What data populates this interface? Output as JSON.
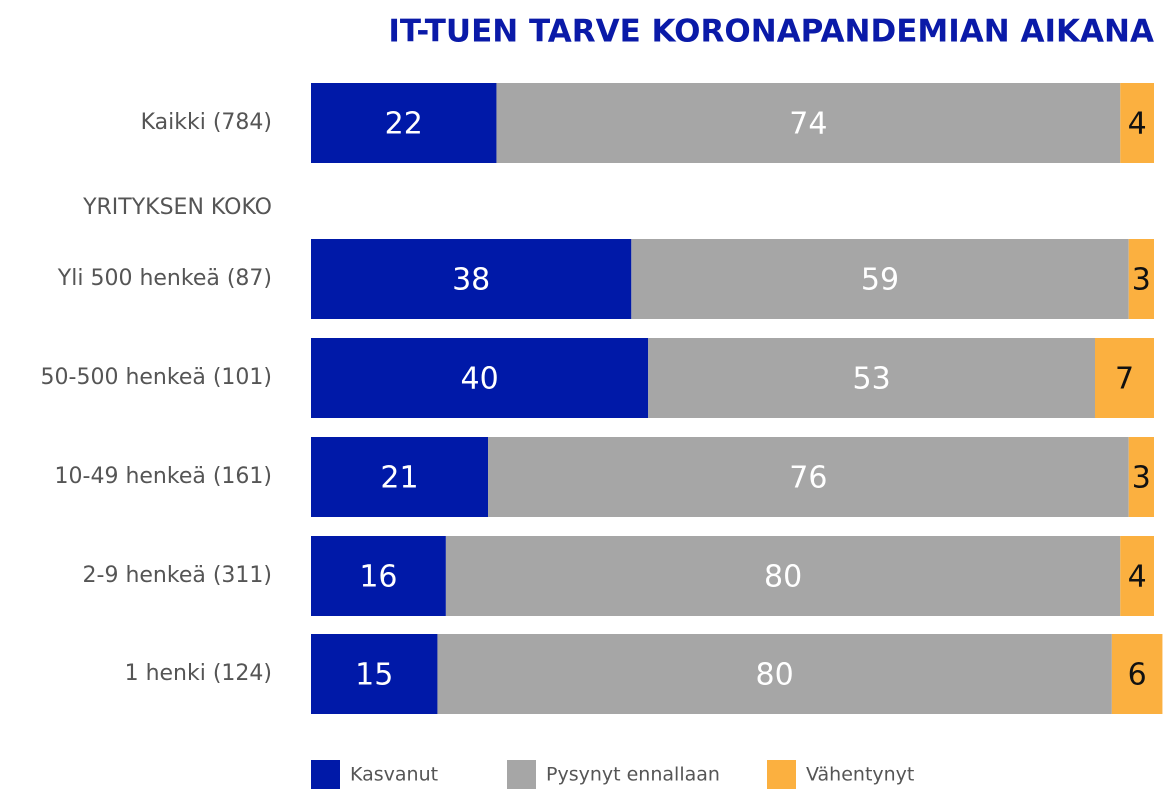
{
  "chart_data": {
    "type": "stacked-barh",
    "title": "IT-TUEN TARVE KORONAPANDEMIAN AIKANA",
    "group_label": "YRITYKSEN KOKO",
    "categories": [
      "Kaikki (784)",
      "Yli 500 henkeä (87)",
      "50-500 henkeä (101)",
      "10-49 henkeä (161)",
      "2-9 henkeä (311)",
      "1 henki  (124)"
    ],
    "series": [
      {
        "name": "Kasvanut",
        "color": "#0019a8",
        "label_color": "#ffffff",
        "values": [
          22,
          38,
          40,
          21,
          16,
          15
        ]
      },
      {
        "name": "Pysynyt ennallaan",
        "color": "#a6a6a6",
        "label_color": "#ffffff",
        "values": [
          74,
          59,
          53,
          76,
          80,
          80
        ]
      },
      {
        "name": "Vähentynyt",
        "color": "#fbb040",
        "label_color": "#111111",
        "values": [
          4,
          3,
          7,
          3,
          4,
          6
        ]
      }
    ],
    "xlim": [
      0,
      100
    ]
  }
}
